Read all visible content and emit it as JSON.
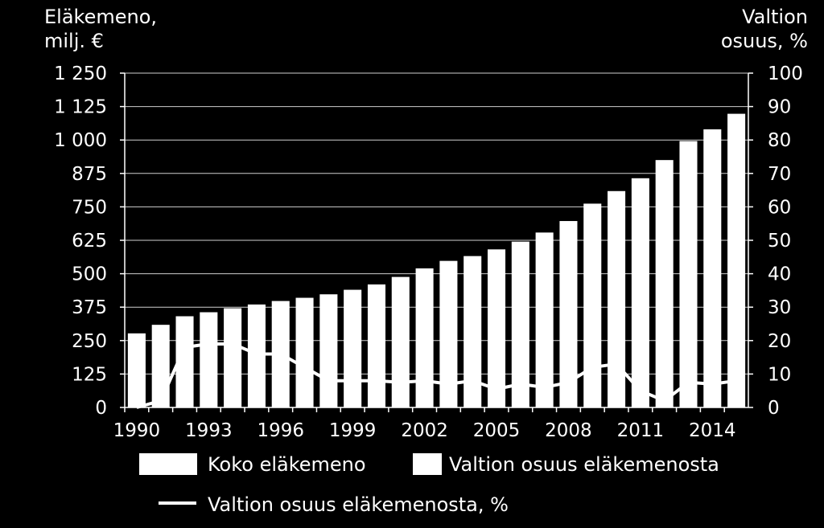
{
  "chart_data": {
    "type": "bar",
    "ylabel_left": [
      "Eläkemeno,",
      "milj. €"
    ],
    "ylabel_right": [
      "Valtion",
      "osuus, %"
    ],
    "x": [
      1990,
      1991,
      1992,
      1993,
      1994,
      1995,
      1996,
      1997,
      1998,
      1999,
      2000,
      2001,
      2002,
      2003,
      2004,
      2005,
      2006,
      2007,
      2008,
      2009,
      2010,
      2011,
      2012,
      2013,
      2014,
      2015
    ],
    "xtick_labels": [
      "1990",
      "1993",
      "1996",
      "1999",
      "2002",
      "2005",
      "2008",
      "2011",
      "2014"
    ],
    "ylim_left": [
      0,
      1250
    ],
    "yticks_left": [
      "0",
      "125",
      "250",
      "375",
      "500",
      "625",
      "750",
      "875",
      "1 000",
      "1 125",
      "1 250"
    ],
    "ylim_right": [
      0,
      100
    ],
    "yticks_right": [
      "0",
      "10",
      "20",
      "30",
      "40",
      "50",
      "60",
      "70",
      "80",
      "90",
      "100"
    ],
    "grid": true,
    "legend": [
      "Koko eläkemeno",
      "Valtion osuus eläkemenosta",
      "Valtion osuus eläkemenosta, %"
    ],
    "series": [
      {
        "name": "Koko eläkemeno",
        "axis": "left",
        "type": "bar",
        "color": "#ffffff",
        "values": [
          277,
          309,
          341,
          356,
          371,
          385,
          398,
          410,
          423,
          440,
          460,
          488,
          520,
          548,
          566,
          591,
          620,
          654,
          697,
          762,
          809,
          857,
          925,
          996,
          1040,
          1098
        ]
      },
      {
        "name": "Valtion osuus eläkemenosta",
        "axis": "left",
        "type": "bar",
        "color": "#ffffff",
        "values": [
          0,
          0,
          0,
          0,
          0,
          0,
          0,
          0,
          0,
          0,
          0,
          0,
          0,
          0,
          0,
          0,
          0,
          0,
          0,
          0,
          0,
          0,
          0,
          0,
          0,
          0
        ]
      },
      {
        "name": "Valtion osuus eläkemenosta, %",
        "axis": "right",
        "type": "line",
        "color": "#ffffff",
        "values": [
          0,
          2,
          18,
          19,
          19,
          16,
          16,
          12,
          8,
          8,
          8,
          7.5,
          8,
          7,
          8,
          5.5,
          7,
          6,
          7.5,
          12,
          13,
          5,
          2,
          7.5,
          7,
          8
        ]
      }
    ]
  }
}
